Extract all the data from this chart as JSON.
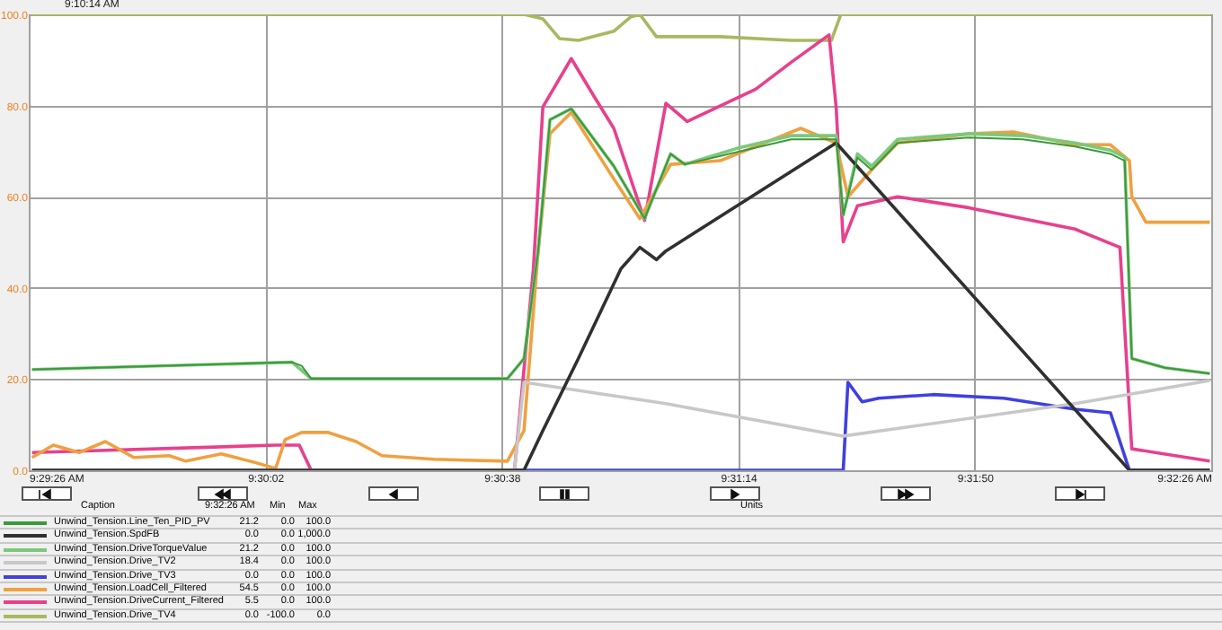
{
  "chart_data": {
    "type": "line",
    "annotations": [
      "9:10:14 AM",
      "Caption",
      "9:32:26 AM",
      "Min",
      "Max",
      "Units",
      "21.2",
      "0.0",
      "100.0",
      "0.0",
      "0.0",
      "1,000.0",
      "21.2",
      "0.0",
      "100.0",
      "18.4",
      "0.0",
      "100.0",
      "0.0",
      "0.0",
      "100.0",
      "54.5",
      "0.0",
      "100.0",
      "5.5",
      "0.0",
      "100.0",
      "0.0",
      "-100.0",
      "0.0"
    ],
    "xlim": [
      9.49056,
      9.54056
    ],
    "xticks": [
      {
        "value": 9.49056,
        "label": "9:29:26 AM"
      },
      {
        "value": 9.50056,
        "label": "9:30:02"
      },
      {
        "value": 9.51056,
        "label": "9:30:38"
      },
      {
        "value": 9.52056,
        "label": "9:31:14"
      },
      {
        "value": 9.53056,
        "label": "9:31:50"
      },
      {
        "value": 9.54056,
        "label": "9:32:26 AM"
      }
    ],
    "ylim": [
      0,
      100
    ],
    "yticks": [
      {
        "value": 0,
        "label": "0.0"
      },
      {
        "value": 20,
        "label": "20.0"
      },
      {
        "value": 40,
        "label": "40.0"
      },
      {
        "value": 60,
        "label": "60.0"
      },
      {
        "value": 80,
        "label": "80.0"
      },
      {
        "value": 100,
        "label": "100.0"
      }
    ],
    "grid": true,
    "legend": "bottom",
    "marker": "none",
    "line_style": "solid",
    "series": [
      {
        "name": "Unwind_Tension.Line_Ten_PID_PV",
        "color": "#3a9a3a",
        "x": [
          9.4907,
          9.5017,
          9.5021,
          9.5025,
          9.5108,
          9.5115,
          9.5121,
          9.5126,
          9.5135,
          9.5153,
          9.5166,
          9.5177,
          9.5183,
          9.5205,
          9.5228,
          9.5247,
          9.525,
          9.5256,
          9.5262,
          9.5273,
          9.5303,
          9.5326,
          9.5348,
          9.5363,
          9.5369,
          9.5372,
          9.5386,
          9.5405
        ],
        "values": [
          22.1,
          23.7,
          22.9,
          20.1,
          20.1,
          24.5,
          48.1,
          76.9,
          79.3,
          66.7,
          55.2,
          69.4,
          67.1,
          69.8,
          72.6,
          72.6,
          56.0,
          68.6,
          65.9,
          71.8,
          73.0,
          72.6,
          71.0,
          69.4,
          67.9,
          24.5,
          22.5,
          21.2
        ]
      },
      {
        "name": "Unwind_Tension.SpdFB",
        "color": "#303030",
        "x": [
          9.4907,
          9.5115,
          9.5123,
          9.5138,
          9.5156,
          9.5164,
          9.5171,
          9.5175,
          9.5247,
          9.5371,
          9.5405
        ],
        "values": [
          0,
          0,
          8.7,
          24.5,
          44.2,
          48.9,
          46.2,
          48.1,
          71.8,
          0,
          0
        ]
      },
      {
        "name": "Unwind_Tension.DriveTorqueValue",
        "color": "#7cc87c",
        "x": [
          9.4907,
          9.5017,
          9.5025,
          9.5108,
          9.5115,
          9.5121,
          9.5126,
          9.5135,
          9.5153,
          9.5166,
          9.5177,
          9.5183,
          9.5205,
          9.5228,
          9.5247,
          9.525,
          9.5256,
          9.5262,
          9.5273,
          9.5303,
          9.5326,
          9.5348,
          9.5363,
          9.5369,
          9.5372,
          9.5386,
          9.5405
        ],
        "values": [
          22.1,
          23.7,
          20.1,
          20.1,
          24.5,
          48.1,
          76.9,
          79.3,
          66.7,
          55.2,
          69.4,
          67.1,
          70.6,
          73.4,
          73.4,
          56.0,
          69.4,
          66.7,
          72.6,
          73.8,
          73.4,
          71.8,
          70.2,
          68.7,
          24.5,
          22.5,
          21.2
        ]
      },
      {
        "name": "Unwind_Tension.Drive_TV2",
        "color": "#c8c8c8",
        "x": [
          9.4907,
          9.5111,
          9.5115,
          9.5175,
          9.525,
          9.5348,
          9.5405
        ],
        "values": [
          0,
          0,
          19.3,
          14.6,
          7.5,
          14.6,
          19.7
        ]
      },
      {
        "name": "Unwind_Tension.Drive_TV3",
        "color": "#4040e0",
        "x": [
          9.4907,
          9.525,
          9.5252,
          9.5258,
          9.5265,
          9.5288,
          9.5318,
          9.5348,
          9.5363,
          9.5371,
          9.5405
        ],
        "values": [
          0,
          0,
          19.3,
          15.0,
          15.8,
          16.6,
          15.8,
          13.4,
          12.6,
          0,
          0
        ]
      },
      {
        "name": "Unwind_Tension.LoadCell_Filtered",
        "color": "#f0a040",
        "x": [
          9.4907,
          9.4916,
          9.4927,
          9.4938,
          9.495,
          9.4965,
          9.4972,
          9.4987,
          9.5002,
          9.501,
          9.5014,
          9.5021,
          9.5032,
          9.5044,
          9.5055,
          9.5077,
          9.5108,
          9.5115,
          9.5121,
          9.5126,
          9.5135,
          9.5153,
          9.5164,
          9.5177,
          9.5198,
          9.5232,
          9.5247,
          9.5252,
          9.5262,
          9.5273,
          9.5303,
          9.5322,
          9.5348,
          9.5363,
          9.5371,
          9.5372,
          9.5378,
          9.5405
        ],
        "values": [
          2.8,
          5.5,
          3.9,
          6.3,
          2.8,
          3.2,
          2.0,
          3.6,
          1.6,
          0.4,
          6.7,
          8.3,
          8.3,
          6.3,
          3.2,
          2.4,
          2.0,
          8.7,
          48.1,
          73.8,
          78.5,
          63.9,
          55.2,
          67.1,
          67.9,
          75.0,
          71.8,
          60.0,
          65.9,
          71.8,
          73.8,
          74.2,
          71.4,
          71.4,
          67.9,
          60.0,
          54.4,
          54.4
        ]
      },
      {
        "name": "Unwind_Tension.DriveCurrent_Filtered",
        "color": "#e8408c",
        "x": [
          9.4907,
          9.501,
          9.502,
          9.5025,
          9.5111,
          9.5119,
          9.5123,
          9.5135,
          9.5145,
          9.5153,
          9.5166,
          9.5175,
          9.5184,
          9.5213,
          9.5228,
          9.5244,
          9.5247,
          9.525,
          9.5256,
          9.5273,
          9.5303,
          9.5348,
          9.5367,
          9.5372,
          9.5405
        ],
        "values": [
          3.9,
          5.5,
          5.5,
          0,
          0,
          44.2,
          79.7,
          90.3,
          81.7,
          75.0,
          54.8,
          80.5,
          76.5,
          83.6,
          89.5,
          95.5,
          79.7,
          50.1,
          58.0,
          60.0,
          57.6,
          52.9,
          48.9,
          4.7,
          2.0
        ]
      },
      {
        "name": "Unwind_Tension.Drive_TV4",
        "color": "#a8b860",
        "x": [
          9.4907,
          9.5115,
          9.5123,
          9.513,
          9.5138,
          9.5153,
          9.516,
          9.5164,
          9.5171,
          9.5198,
          9.5228,
          9.5245,
          9.5249,
          9.5405
        ],
        "values": [
          100,
          100,
          99.0,
          94.7,
          94.3,
          96.3,
          99.4,
          100,
          95.1,
          95.1,
          94.3,
          94.3,
          100,
          100
        ]
      }
    ]
  }
}
